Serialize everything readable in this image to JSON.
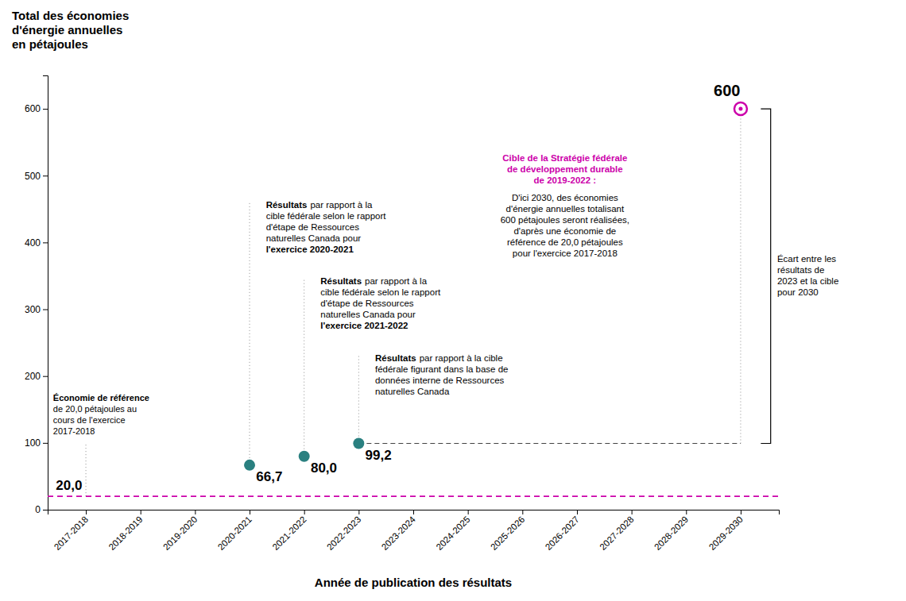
{
  "chart_data": {
    "type": "scatter",
    "title": "Total des économies\nd'énergie annuelles\nen pétajoules",
    "x_label": "Année de publication des résultats",
    "categories": [
      "2017-2018",
      "2018-2019",
      "2019-2020",
      "2020-2021",
      "2021-2022",
      "2022-2023",
      "2023-2024",
      "2024-2025",
      "2025-2026",
      "2026-2027",
      "2027-2028",
      "2028-2029",
      "2029-2030"
    ],
    "values": [
      null,
      null,
      null,
      66.7,
      80.0,
      99.2,
      null,
      null,
      null,
      null,
      null,
      null,
      null
    ],
    "value_labels": [
      null,
      null,
      null,
      "66,7",
      "80,0",
      "99,2",
      null,
      null,
      null,
      null,
      null,
      null,
      null
    ],
    "color": "#2a8080",
    "marker": "circle",
    "data_labels": true,
    "grid": false,
    "ylim": [
      0,
      650
    ],
    "yticks": [
      0,
      100,
      200,
      300,
      400,
      500,
      600
    ],
    "reference": {
      "value": 20.0,
      "label": "20,0",
      "category": "2017-2018",
      "color": "#cc00aa",
      "line_style": "dashed",
      "heading": "Économie de référence",
      "text": "de 20,0 pétajoules au\ncours de l'exercice\n2017-2018"
    },
    "annotations": [
      {
        "category": "2020-2021",
        "heading": "Résultats",
        "text": "par rapport à la\ncible fédérale selon le rapport\nd'étape de Ressources\nnaturelles Canada pour",
        "emphasis": "l'exercice 2020-2021"
      },
      {
        "category": "2021-2022",
        "heading": "Résultats",
        "text": "par rapport à la\ncible fédérale selon le rapport\nd'étape de Ressources\nnaturelles Canada pour",
        "emphasis": "l'exercice 2021-2022"
      },
      {
        "category": "2022-2023",
        "heading": "Résultats",
        "text": "par rapport à la cible\nfédérale figurant dans la base de\ndonnées interne de Ressources\nnaturelles Canada"
      }
    ],
    "target": {
      "value": 600,
      "label": "600",
      "category": "2029-2030",
      "color": "#cc00aa",
      "heading": "Cible de la Stratégie fédérale\nde développement durable\nde 2019-2022 :",
      "text": "D'ici 2030, des économies\nd'énergie annuelles totalisant\n600 pétajoules seront réalisées,\nd'après une économie de\nréférence de 20,0 pétajoules\npour l'exercice 2017-2018"
    },
    "gap": {
      "value": 99.2,
      "from": "2022-2023",
      "to": "2029-2030",
      "line_style": "dashed",
      "label": "Écart entre les\nrésultats de\n2023 et la cible\npour 2030"
    }
  }
}
